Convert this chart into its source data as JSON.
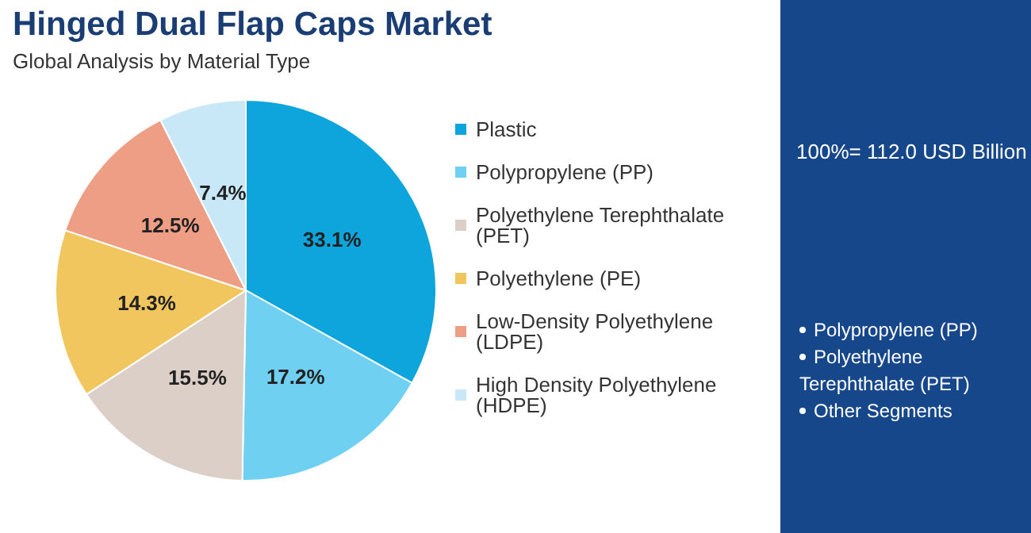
{
  "chart_data": {
    "type": "pie",
    "title": "Hinged Dual Flap Caps Market",
    "subtitle": "Global Analysis by Material Type",
    "categories": [
      "Plastic",
      "Polypropylene (PP)",
      "Polyethylene Terephthalate (PET)",
      "Polyethylene (PE)",
      "Low-Density Polyethylene (LDPE)",
      "High Density Polyethylene (HDPE)"
    ],
    "values": [
      33.1,
      17.2,
      15.5,
      14.3,
      12.5,
      7.4
    ],
    "value_labels": [
      "33.1%",
      "17.2%",
      "15.5%",
      "14.3%",
      "12.5%",
      "7.4%"
    ],
    "colors": [
      "#0ea5dc",
      "#6fd0f2",
      "#dccfc8",
      "#f2c65e",
      "#ef9e86",
      "#c9e8f7"
    ],
    "legend": "right",
    "annotations": [
      "100%= 112.0 USD Billion",
      "Polypropylene (PP)",
      "Polyethylene Terephthalate (PET)",
      "Other Segments"
    ]
  }
}
